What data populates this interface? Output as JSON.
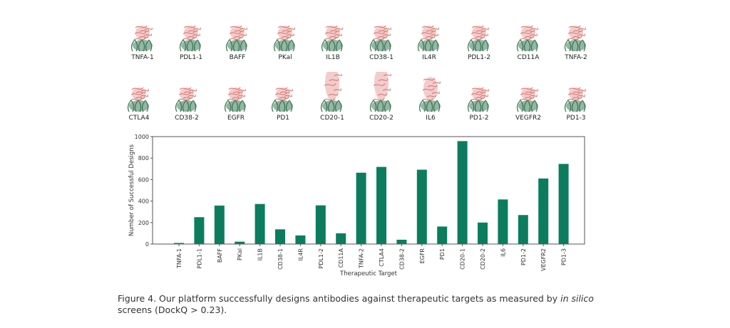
{
  "structures": {
    "row1": [
      "TNFA-1",
      "PDL1-1",
      "BAFF",
      "PKal",
      "IL1B",
      "CD38-1",
      "IL4R",
      "PDL1-2",
      "CD11A",
      "TNFA-2"
    ],
    "row2": [
      "CTLA4",
      "CD38-2",
      "EGFR",
      "PD1",
      "CD20-1",
      "CD20-2",
      "IL6",
      "PD1-2",
      "VEGFR2",
      "PD1-3"
    ]
  },
  "colors": {
    "bar": "#0b7d5e",
    "antibody": "#3d7a58",
    "antigen": "#d9706a"
  },
  "chart_data": {
    "type": "bar",
    "categories": [
      "TNFA-1",
      "PDL1-1",
      "BAFF",
      "PKal",
      "IL1B",
      "CD38-1",
      "IL4R",
      "PDL1-2",
      "CD11A",
      "TNFA-2",
      "CTLA4",
      "CD38-2",
      "EGFR",
      "PD1",
      "CD20-1",
      "CD20-2",
      "IL6",
      "PD1-2",
      "VEGFR2",
      "PD1-3"
    ],
    "values": [
      10,
      250,
      358,
      22,
      373,
      137,
      80,
      360,
      100,
      664,
      718,
      40,
      692,
      163,
      958,
      200,
      415,
      270,
      610,
      746
    ],
    "xlabel": "Therapeutic Target",
    "ylabel": "Number of Successful Designs",
    "ylim": [
      0,
      1000
    ],
    "yticks": [
      0,
      200,
      400,
      600,
      800,
      1000
    ],
    "grid": false
  },
  "caption": {
    "prefix": "Figure 4. Our platform successfully designs antibodies against therapeutic targets as measured by ",
    "italic": "in silico",
    "suffix": " screens (DockQ > 0.23)."
  }
}
